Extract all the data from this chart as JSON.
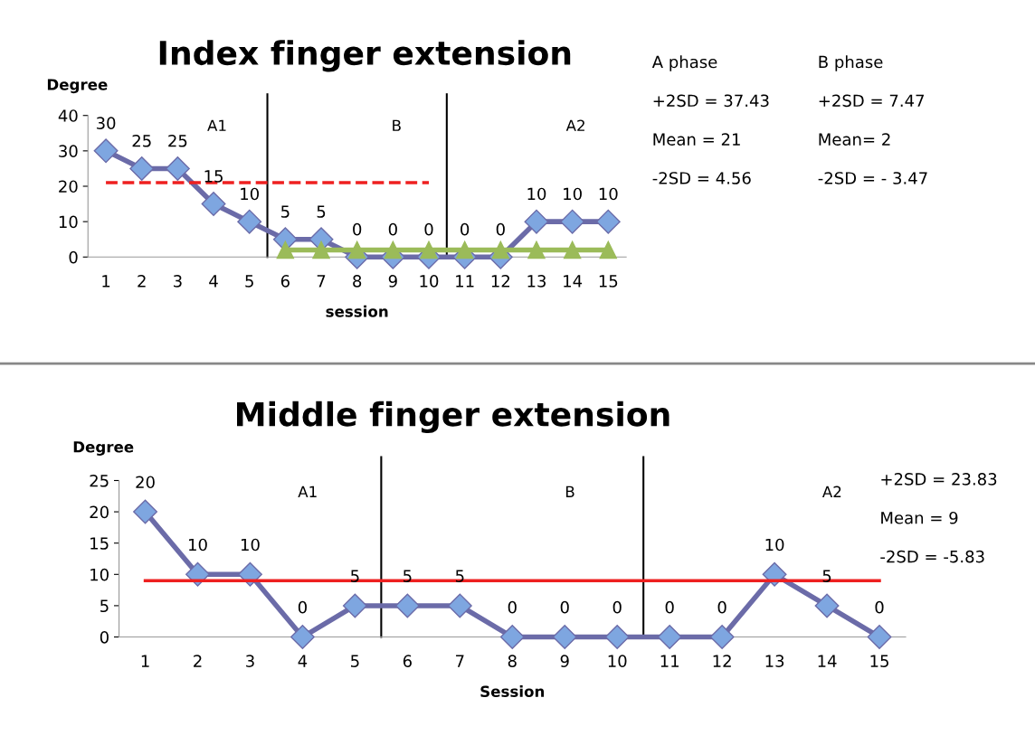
{
  "chart_data": [
    {
      "type": "line",
      "title": "Index finger extension",
      "xlabel": "session",
      "ylabel": "Degree",
      "x": [
        1,
        2,
        3,
        4,
        5,
        6,
        7,
        8,
        9,
        10,
        11,
        12,
        13,
        14,
        15
      ],
      "xlim": [
        0.5,
        15.5
      ],
      "xticks": [
        1,
        2,
        3,
        4,
        5,
        6,
        7,
        8,
        9,
        10,
        11,
        12,
        13,
        14,
        15
      ],
      "ylim": [
        0,
        40
      ],
      "yticks": [
        0,
        10,
        20,
        30,
        40
      ],
      "grid": false,
      "legend": false,
      "series": [
        {
          "color": "#6b6ba8",
          "marker": "diamond",
          "line_style": "solid",
          "values": [
            30,
            25,
            25,
            15,
            10,
            5,
            5,
            0,
            0,
            0,
            0,
            0,
            10,
            10,
            10
          ],
          "value_labels": [
            "30",
            "25",
            "25",
            "15",
            "10",
            "5",
            "5",
            "0",
            "0",
            "0",
            "0",
            "0",
            "10",
            "10",
            "10"
          ]
        },
        {
          "color": "#ee2020",
          "marker": "none",
          "line_style": "dashed",
          "x": [
            1,
            2,
            3,
            4,
            5,
            6,
            7,
            8,
            9,
            10
          ],
          "values": [
            21,
            21,
            21,
            21,
            21,
            21,
            21,
            21,
            21,
            21
          ]
        },
        {
          "color": "#9bbb59",
          "marker": "triangle",
          "line_style": "solid",
          "x": [
            6,
            7,
            8,
            9,
            10,
            11,
            12,
            13,
            14,
            15
          ],
          "values": [
            2,
            2,
            2,
            2,
            2,
            2,
            2,
            2,
            2,
            2
          ]
        }
      ],
      "ref_lines": [
        {
          "axis": "x",
          "value": 5.5,
          "color": "#000000"
        },
        {
          "axis": "x",
          "value": 10.5,
          "color": "#000000"
        }
      ],
      "annotations": [
        "A1",
        "B",
        "A2",
        "A phase",
        "+2SD = 37.43",
        "Mean = 21",
        "-2SD = 4.56",
        "B phase",
        "+2SD = 7.47",
        "Mean= 2",
        "-2SD = - 3.47"
      ]
    },
    {
      "type": "line",
      "title": "Middle finger extension",
      "xlabel": "Session",
      "ylabel": "Degree",
      "x": [
        1,
        2,
        3,
        4,
        5,
        6,
        7,
        8,
        9,
        10,
        11,
        12,
        13,
        14,
        15
      ],
      "xlim": [
        0.5,
        15.5
      ],
      "xticks": [
        1,
        2,
        3,
        4,
        5,
        6,
        7,
        8,
        9,
        10,
        11,
        12,
        13,
        14,
        15
      ],
      "ylim": [
        0,
        25
      ],
      "yticks": [
        0,
        5,
        10,
        15,
        20,
        25
      ],
      "grid": false,
      "legend": false,
      "series": [
        {
          "color": "#6b6ba8",
          "marker": "diamond",
          "line_style": "solid",
          "values": [
            20,
            10,
            10,
            0,
            5,
            5,
            5,
            0,
            0,
            0,
            0,
            0,
            10,
            5,
            0
          ],
          "value_labels": [
            "20",
            "10",
            "10",
            "0",
            "5",
            "5",
            "5",
            "0",
            "0",
            "0",
            "0",
            "0",
            "10",
            "5",
            "0"
          ]
        },
        {
          "color": "#ee2020",
          "marker": "none",
          "line_style": "solid",
          "x": [
            1,
            2,
            3,
            4,
            5,
            6,
            7,
            8,
            9,
            10,
            11,
            12,
            13,
            14,
            15
          ],
          "values": [
            9,
            9,
            9,
            9,
            9,
            9,
            9,
            9,
            9,
            9,
            9,
            9,
            9,
            9,
            9
          ]
        }
      ],
      "ref_lines": [
        {
          "axis": "x",
          "value": 5.5,
          "color": "#000000"
        },
        {
          "axis": "x",
          "value": 10.5,
          "color": "#000000"
        }
      ],
      "annotations": [
        "A1",
        "B",
        "A2",
        "+2SD = 23.83",
        "Mean = 9",
        "-2SD = -5.83"
      ]
    }
  ]
}
